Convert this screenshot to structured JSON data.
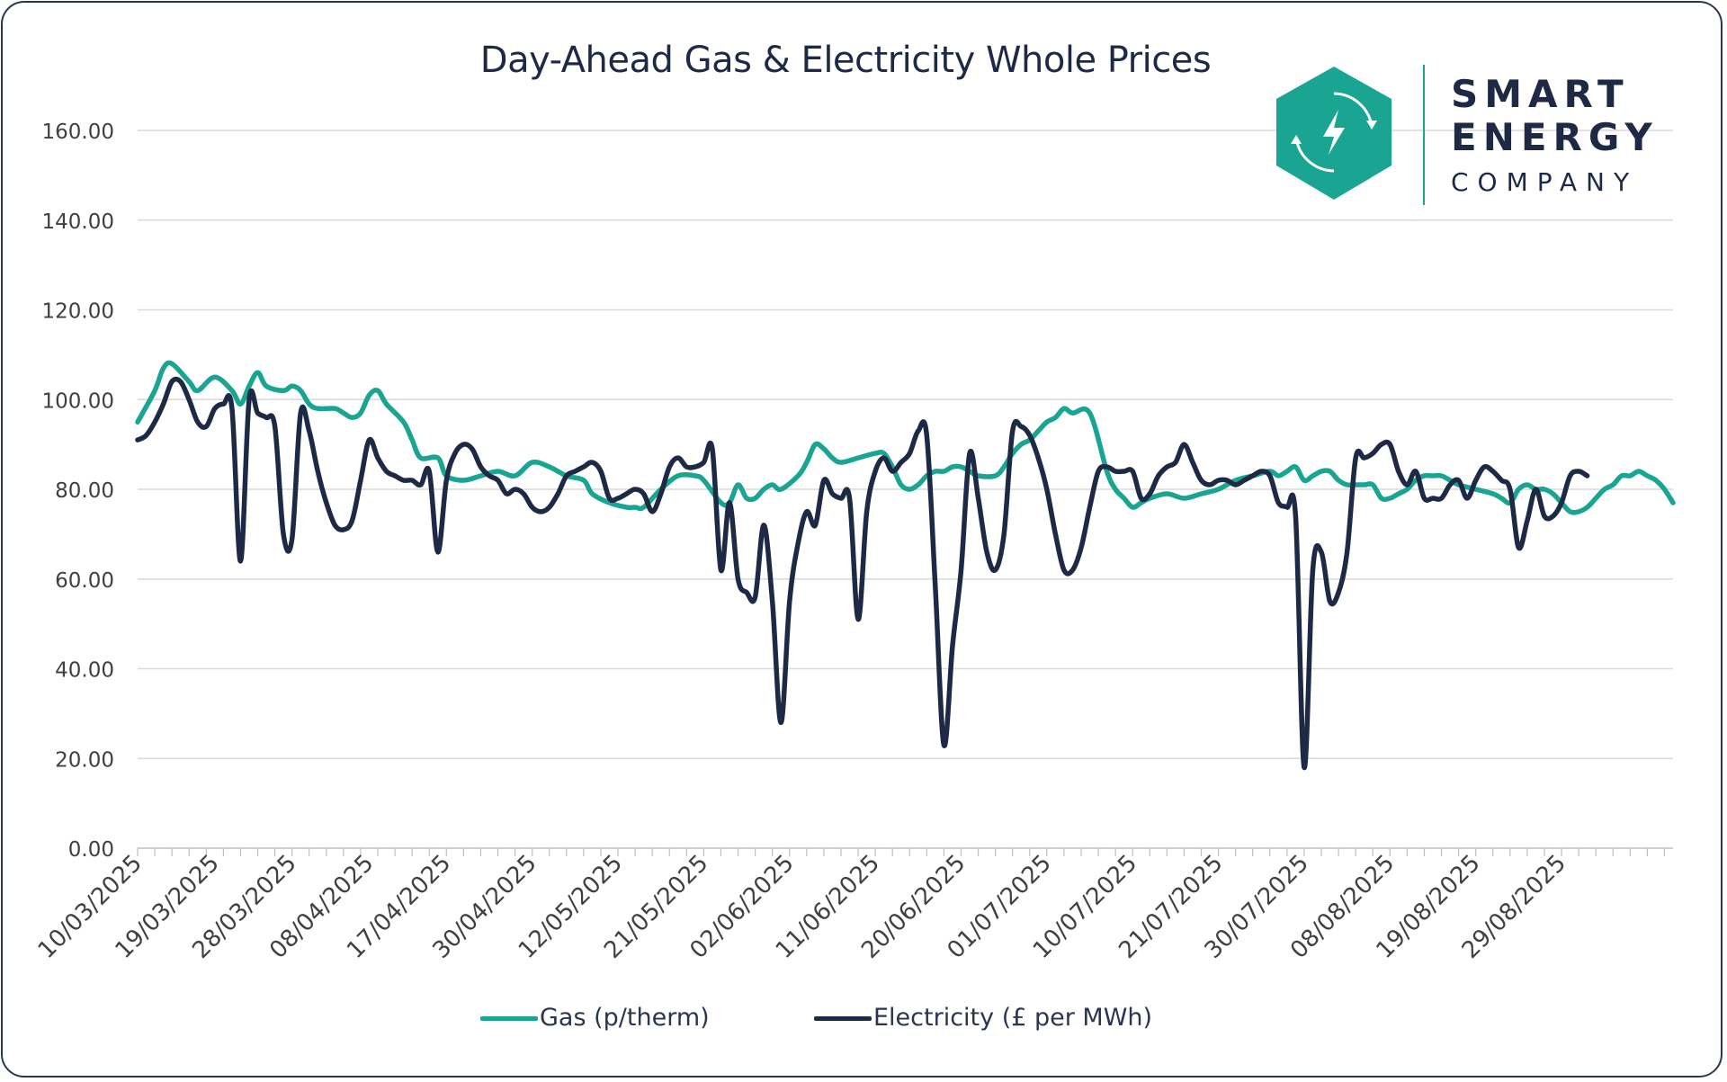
{
  "colors": {
    "gas": "#19a592",
    "electricity": "#1e2a45",
    "grid": "#d9d9d9",
    "axis_text": "#404040",
    "logo": "#19a592"
  },
  "logo": {
    "line1": "SMART",
    "line2": "ENERGY",
    "line3": "COMPANY",
    "icon": "lightning-bolt-icon"
  },
  "chart_data": {
    "type": "line",
    "title": "Day-Ahead Gas & Electricity Whole Prices",
    "xlabel": "",
    "ylabel": "",
    "ylim": [
      0,
      160
    ],
    "yticks": [
      "0.00",
      "20.00",
      "40.00",
      "60.00",
      "80.00",
      "100.00",
      "120.00",
      "140.00",
      "160.00"
    ],
    "grid": true,
    "legend_position": "bottom",
    "n_days": 180,
    "x_tick_labels": [
      {
        "day": 0,
        "label": "10/03/2025"
      },
      {
        "day": 9,
        "label": "19/03/2025"
      },
      {
        "day": 18,
        "label": "28/03/2025"
      },
      {
        "day": 27,
        "label": "08/04/2025"
      },
      {
        "day": 36,
        "label": "17/04/2025"
      },
      {
        "day": 46,
        "label": "30/04/2025"
      },
      {
        "day": 56,
        "label": "12/05/2025"
      },
      {
        "day": 66,
        "label": "21/05/2025"
      },
      {
        "day": 76,
        "label": "02/06/2025"
      },
      {
        "day": 86,
        "label": "11/06/2025"
      },
      {
        "day": 96,
        "label": "20/06/2025"
      },
      {
        "day": 106,
        "label": "01/07/2025"
      },
      {
        "day": 116,
        "label": "10/07/2025"
      },
      {
        "day": 126,
        "label": "21/07/2025"
      },
      {
        "day": 136,
        "label": "30/07/2025"
      },
      {
        "day": 146,
        "label": "08/08/2025"
      },
      {
        "day": 156,
        "label": "19/08/2025"
      },
      {
        "day": 166,
        "label": "29/08/2025"
      }
    ],
    "series": [
      {
        "name": "Gas (p/therm)",
        "points": [
          [
            0,
            95
          ],
          [
            2,
            102
          ],
          [
            3,
            107
          ],
          [
            4,
            108
          ],
          [
            6,
            104
          ],
          [
            7,
            102
          ],
          [
            9,
            105
          ],
          [
            11,
            102
          ],
          [
            12,
            99
          ],
          [
            13,
            103
          ],
          [
            14,
            106
          ],
          [
            15,
            103
          ],
          [
            17,
            102
          ],
          [
            18,
            103
          ],
          [
            19,
            102
          ],
          [
            20,
            99
          ],
          [
            21,
            98
          ],
          [
            23,
            98
          ],
          [
            24,
            97
          ],
          [
            25,
            96
          ],
          [
            26,
            97
          ],
          [
            27,
            101
          ],
          [
            28,
            102
          ],
          [
            29,
            99
          ],
          [
            31,
            95
          ],
          [
            32,
            91
          ],
          [
            33,
            87
          ],
          [
            35,
            87
          ],
          [
            36,
            83
          ],
          [
            38,
            82
          ],
          [
            40,
            83
          ],
          [
            42,
            84
          ],
          [
            44,
            83
          ],
          [
            46,
            86
          ],
          [
            48,
            85
          ],
          [
            50,
            83
          ],
          [
            52,
            82
          ],
          [
            53,
            79
          ],
          [
            55,
            77
          ],
          [
            57,
            76
          ],
          [
            58,
            76
          ],
          [
            59,
            76
          ],
          [
            61,
            80
          ],
          [
            63,
            83
          ],
          [
            65,
            83
          ],
          [
            66,
            82
          ],
          [
            68,
            77
          ],
          [
            69,
            77
          ],
          [
            70,
            81
          ],
          [
            71,
            78
          ],
          [
            72,
            78
          ],
          [
            73,
            80
          ],
          [
            74,
            81
          ],
          [
            75,
            80
          ],
          [
            77,
            83
          ],
          [
            78,
            86
          ],
          [
            79,
            90
          ],
          [
            80,
            89
          ],
          [
            81,
            87
          ],
          [
            82,
            86
          ],
          [
            84,
            87
          ],
          [
            86,
            88
          ],
          [
            87,
            88
          ],
          [
            88,
            85
          ],
          [
            89,
            81
          ],
          [
            90,
            80
          ],
          [
            91,
            81
          ],
          [
            92,
            83
          ],
          [
            93,
            84
          ],
          [
            94,
            84
          ],
          [
            95,
            85
          ],
          [
            96,
            85
          ],
          [
            97,
            84
          ],
          [
            98,
            83
          ],
          [
            100,
            83
          ],
          [
            101,
            85
          ],
          [
            102,
            88
          ],
          [
            103,
            90
          ],
          [
            104,
            91
          ],
          [
            105,
            93
          ],
          [
            106,
            95
          ],
          [
            107,
            96
          ],
          [
            108,
            98
          ],
          [
            109,
            97
          ],
          [
            111,
            97
          ],
          [
            113,
            84
          ],
          [
            114,
            80
          ],
          [
            115,
            78
          ],
          [
            116,
            76
          ],
          [
            117,
            77
          ],
          [
            118,
            78
          ],
          [
            120,
            79
          ],
          [
            122,
            78
          ],
          [
            124,
            79
          ],
          [
            126,
            80
          ],
          [
            128,
            82
          ],
          [
            130,
            83
          ],
          [
            132,
            84
          ],
          [
            133,
            83
          ],
          [
            134,
            84
          ],
          [
            135,
            85
          ],
          [
            136,
            82
          ],
          [
            137,
            83
          ],
          [
            138,
            84
          ],
          [
            139,
            84
          ],
          [
            140,
            82
          ],
          [
            141,
            81
          ],
          [
            142,
            81
          ],
          [
            143,
            81
          ],
          [
            144,
            81
          ],
          [
            145,
            78
          ],
          [
            146,
            78
          ],
          [
            147,
            79
          ],
          [
            148,
            80
          ],
          [
            149,
            82
          ],
          [
            150,
            83
          ],
          [
            151,
            83
          ],
          [
            152,
            83
          ],
          [
            153,
            82
          ],
          [
            154,
            81
          ],
          [
            156,
            80
          ],
          [
            158,
            79
          ],
          [
            159,
            78
          ],
          [
            160,
            77
          ],
          [
            161,
            80
          ],
          [
            162,
            81
          ],
          [
            163,
            80
          ],
          [
            164,
            80
          ],
          [
            165,
            79
          ],
          [
            166,
            77
          ],
          [
            167,
            75
          ],
          [
            168,
            75
          ],
          [
            169,
            76
          ],
          [
            170,
            78
          ],
          [
            171,
            80
          ],
          [
            172,
            81
          ],
          [
            173,
            83
          ],
          [
            174,
            83
          ],
          [
            175,
            84
          ],
          [
            176,
            83
          ],
          [
            177,
            82
          ],
          [
            178,
            80
          ],
          [
            179,
            77
          ]
        ]
      },
      {
        "name": "Electricity (£ per MWh)",
        "points": [
          [
            0,
            91
          ],
          [
            1,
            92
          ],
          [
            2,
            95
          ],
          [
            3,
            99
          ],
          [
            4,
            104
          ],
          [
            5,
            104
          ],
          [
            6,
            100
          ],
          [
            7,
            95
          ],
          [
            8,
            94
          ],
          [
            9,
            98
          ],
          [
            10,
            99
          ],
          [
            11,
            98
          ],
          [
            12,
            64
          ],
          [
            13,
            100
          ],
          [
            14,
            97
          ],
          [
            15,
            96
          ],
          [
            16,
            94
          ],
          [
            17,
            70
          ],
          [
            18,
            69
          ],
          [
            19,
            97
          ],
          [
            20,
            93
          ],
          [
            21,
            84
          ],
          [
            22,
            77
          ],
          [
            23,
            72
          ],
          [
            24,
            71
          ],
          [
            25,
            73
          ],
          [
            26,
            82
          ],
          [
            27,
            91
          ],
          [
            28,
            87
          ],
          [
            29,
            84
          ],
          [
            30,
            83
          ],
          [
            31,
            82
          ],
          [
            32,
            82
          ],
          [
            33,
            81
          ],
          [
            34,
            84
          ],
          [
            35,
            66
          ],
          [
            36,
            82
          ],
          [
            37,
            88
          ],
          [
            38,
            90
          ],
          [
            39,
            89
          ],
          [
            40,
            85
          ],
          [
            41,
            83
          ],
          [
            42,
            82
          ],
          [
            43,
            79
          ],
          [
            44,
            80
          ],
          [
            45,
            79
          ],
          [
            46,
            76
          ],
          [
            47,
            75
          ],
          [
            48,
            76
          ],
          [
            49,
            79
          ],
          [
            50,
            83
          ],
          [
            51,
            84
          ],
          [
            52,
            85
          ],
          [
            53,
            86
          ],
          [
            54,
            84
          ],
          [
            55,
            78
          ],
          [
            56,
            78
          ],
          [
            57,
            79
          ],
          [
            58,
            80
          ],
          [
            59,
            79
          ],
          [
            60,
            75
          ],
          [
            61,
            79
          ],
          [
            62,
            85
          ],
          [
            63,
            87
          ],
          [
            64,
            85
          ],
          [
            65,
            85
          ],
          [
            66,
            86
          ],
          [
            67,
            89
          ],
          [
            68,
            62
          ],
          [
            69,
            77
          ],
          [
            70,
            60
          ],
          [
            71,
            57
          ],
          [
            72,
            56
          ],
          [
            73,
            72
          ],
          [
            74,
            55
          ],
          [
            75,
            28
          ],
          [
            76,
            55
          ],
          [
            77,
            68
          ],
          [
            78,
            75
          ],
          [
            79,
            72
          ],
          [
            80,
            82
          ],
          [
            81,
            79
          ],
          [
            82,
            78
          ],
          [
            83,
            78
          ],
          [
            84,
            51
          ],
          [
            85,
            75
          ],
          [
            86,
            84
          ],
          [
            87,
            87
          ],
          [
            88,
            84
          ],
          [
            89,
            86
          ],
          [
            90,
            88
          ],
          [
            91,
            93
          ],
          [
            92,
            92
          ],
          [
            93,
            58
          ],
          [
            94,
            23
          ],
          [
            95,
            45
          ],
          [
            96,
            62
          ],
          [
            97,
            88
          ],
          [
            98,
            78
          ],
          [
            99,
            66
          ],
          [
            100,
            62
          ],
          [
            101,
            70
          ],
          [
            102,
            93
          ],
          [
            103,
            94
          ],
          [
            104,
            92
          ],
          [
            105,
            87
          ],
          [
            106,
            80
          ],
          [
            107,
            70
          ],
          [
            108,
            62
          ],
          [
            109,
            62
          ],
          [
            110,
            67
          ],
          [
            111,
            76
          ],
          [
            112,
            84
          ],
          [
            113,
            85
          ],
          [
            114,
            84
          ],
          [
            115,
            84
          ],
          [
            116,
            84
          ],
          [
            117,
            78
          ],
          [
            118,
            79
          ],
          [
            119,
            83
          ],
          [
            120,
            85
          ],
          [
            121,
            86
          ],
          [
            122,
            90
          ],
          [
            123,
            86
          ],
          [
            124,
            82
          ],
          [
            125,
            81
          ],
          [
            126,
            82
          ],
          [
            127,
            82
          ],
          [
            128,
            81
          ],
          [
            129,
            82
          ],
          [
            130,
            83
          ],
          [
            131,
            84
          ],
          [
            132,
            83
          ],
          [
            133,
            77
          ],
          [
            134,
            76
          ],
          [
            135,
            74
          ],
          [
            136,
            18
          ],
          [
            137,
            62
          ],
          [
            138,
            66
          ],
          [
            139,
            55
          ],
          [
            140,
            57
          ],
          [
            141,
            66
          ],
          [
            142,
            87
          ],
          [
            143,
            87
          ],
          [
            144,
            88
          ],
          [
            145,
            90
          ],
          [
            146,
            90
          ],
          [
            147,
            84
          ],
          [
            148,
            81
          ],
          [
            149,
            84
          ],
          [
            150,
            78
          ],
          [
            151,
            78
          ],
          [
            152,
            78
          ],
          [
            153,
            81
          ],
          [
            154,
            82
          ],
          [
            155,
            78
          ],
          [
            156,
            82
          ],
          [
            157,
            85
          ],
          [
            158,
            84
          ],
          [
            159,
            82
          ],
          [
            160,
            80
          ],
          [
            161,
            67
          ],
          [
            162,
            73
          ],
          [
            163,
            80
          ],
          [
            164,
            74
          ],
          [
            165,
            74
          ],
          [
            166,
            77
          ],
          [
            167,
            83
          ],
          [
            168,
            84
          ],
          [
            169,
            83
          ]
        ]
      }
    ]
  }
}
